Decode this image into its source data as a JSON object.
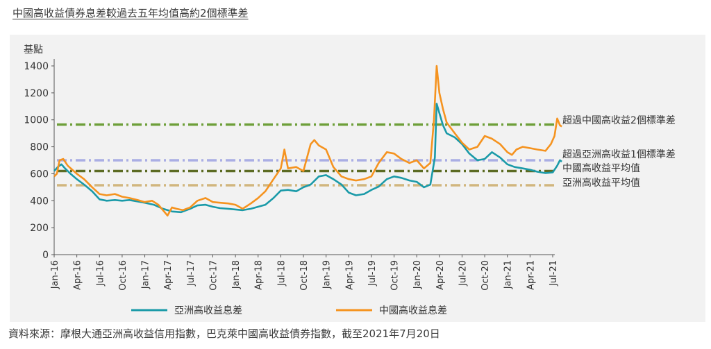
{
  "title": "中國高收益債券息差較過去五年均值高約2個標準差",
  "source": "資料來源：摩根大通亞洲高收益信用指數，巴克萊中國高收益債券指數，截至2021年7月20日",
  "chart_data": {
    "type": "line",
    "title": "中國高收益債券息差較過去五年均值高約2個標準差",
    "ylabel": "基點",
    "ylim": [
      0,
      1400
    ],
    "yticks": [
      "0",
      "200",
      "400",
      "600",
      "800",
      "1000",
      "1200",
      "1400"
    ],
    "x_start": "2016-01",
    "x_end": "2021-07",
    "x_ticks": [
      "Jan-16",
      "Apr-16",
      "Jul-16",
      "Oct-16",
      "Jan-17",
      "Apr-17",
      "Jul-17",
      "Oct-17",
      "Jan-18",
      "Apr-18",
      "Jul-18",
      "Oct-18",
      "Jan-19",
      "Apr-19",
      "Jul-19",
      "Oct-19",
      "Jan-20",
      "Apr-20",
      "Jul-20",
      "Oct-20",
      "Jan-21",
      "Apr-21",
      "Jul-21"
    ],
    "grid": false,
    "legend_position": "bottom",
    "series": [
      {
        "name": "亞洲高收益息差",
        "color": "#1a9aa8",
        "points": [
          [
            2016.0,
            620
          ],
          [
            2016.04,
            650
          ],
          [
            2016.08,
            670
          ],
          [
            2016.12,
            640
          ],
          [
            2016.18,
            600
          ],
          [
            2016.25,
            560
          ],
          [
            2016.33,
            520
          ],
          [
            2016.42,
            470
          ],
          [
            2016.5,
            410
          ],
          [
            2016.58,
            400
          ],
          [
            2016.67,
            405
          ],
          [
            2016.75,
            400
          ],
          [
            2016.83,
            405
          ],
          [
            2016.92,
            395
          ],
          [
            2017.0,
            385
          ],
          [
            2017.1,
            370
          ],
          [
            2017.2,
            340
          ],
          [
            2017.3,
            320
          ],
          [
            2017.4,
            315
          ],
          [
            2017.5,
            340
          ],
          [
            2017.58,
            365
          ],
          [
            2017.67,
            370
          ],
          [
            2017.75,
            355
          ],
          [
            2017.83,
            345
          ],
          [
            2017.92,
            340
          ],
          [
            2018.0,
            335
          ],
          [
            2018.08,
            330
          ],
          [
            2018.17,
            340
          ],
          [
            2018.25,
            355
          ],
          [
            2018.33,
            370
          ],
          [
            2018.42,
            420
          ],
          [
            2018.5,
            475
          ],
          [
            2018.58,
            480
          ],
          [
            2018.67,
            470
          ],
          [
            2018.75,
            500
          ],
          [
            2018.83,
            520
          ],
          [
            2018.92,
            580
          ],
          [
            2019.0,
            590
          ],
          [
            2019.08,
            560
          ],
          [
            2019.17,
            520
          ],
          [
            2019.25,
            460
          ],
          [
            2019.33,
            440
          ],
          [
            2019.42,
            450
          ],
          [
            2019.5,
            480
          ],
          [
            2019.58,
            505
          ],
          [
            2019.67,
            560
          ],
          [
            2019.75,
            580
          ],
          [
            2019.83,
            570
          ],
          [
            2019.92,
            550
          ],
          [
            2020.0,
            540
          ],
          [
            2020.08,
            500
          ],
          [
            2020.15,
            520
          ],
          [
            2020.2,
            720
          ],
          [
            2020.22,
            1120
          ],
          [
            2020.25,
            1050
          ],
          [
            2020.29,
            960
          ],
          [
            2020.33,
            900
          ],
          [
            2020.42,
            870
          ],
          [
            2020.5,
            820
          ],
          [
            2020.58,
            750
          ],
          [
            2020.67,
            700
          ],
          [
            2020.75,
            710
          ],
          [
            2020.83,
            760
          ],
          [
            2020.92,
            720
          ],
          [
            2021.0,
            670
          ],
          [
            2021.08,
            650
          ],
          [
            2021.17,
            640
          ],
          [
            2021.25,
            630
          ],
          [
            2021.33,
            615
          ],
          [
            2021.42,
            605
          ],
          [
            2021.5,
            610
          ],
          [
            2021.55,
            660
          ],
          [
            2021.58,
            700
          ],
          [
            2021.6,
            690
          ]
        ]
      },
      {
        "name": "中國高收益息差",
        "color": "#f5931f",
        "points": [
          [
            2016.0,
            580
          ],
          [
            2016.03,
            600
          ],
          [
            2016.06,
            700
          ],
          [
            2016.1,
            710
          ],
          [
            2016.15,
            660
          ],
          [
            2016.2,
            630
          ],
          [
            2016.25,
            600
          ],
          [
            2016.33,
            560
          ],
          [
            2016.42,
            500
          ],
          [
            2016.5,
            450
          ],
          [
            2016.58,
            440
          ],
          [
            2016.67,
            450
          ],
          [
            2016.75,
            430
          ],
          [
            2016.83,
            420
          ],
          [
            2016.92,
            405
          ],
          [
            2017.0,
            390
          ],
          [
            2017.08,
            400
          ],
          [
            2017.15,
            370
          ],
          [
            2017.2,
            330
          ],
          [
            2017.25,
            290
          ],
          [
            2017.3,
            350
          ],
          [
            2017.35,
            340
          ],
          [
            2017.42,
            330
          ],
          [
            2017.5,
            350
          ],
          [
            2017.58,
            400
          ],
          [
            2017.67,
            420
          ],
          [
            2017.75,
            390
          ],
          [
            2017.83,
            385
          ],
          [
            2017.92,
            380
          ],
          [
            2018.0,
            370
          ],
          [
            2018.08,
            340
          ],
          [
            2018.17,
            380
          ],
          [
            2018.25,
            420
          ],
          [
            2018.33,
            470
          ],
          [
            2018.42,
            560
          ],
          [
            2018.5,
            640
          ],
          [
            2018.54,
            780
          ],
          [
            2018.58,
            640
          ],
          [
            2018.67,
            650
          ],
          [
            2018.75,
            620
          ],
          [
            2018.83,
            820
          ],
          [
            2018.87,
            850
          ],
          [
            2018.92,
            810
          ],
          [
            2019.0,
            780
          ],
          [
            2019.08,
            650
          ],
          [
            2019.17,
            580
          ],
          [
            2019.25,
            560
          ],
          [
            2019.33,
            550
          ],
          [
            2019.42,
            560
          ],
          [
            2019.5,
            580
          ],
          [
            2019.58,
            680
          ],
          [
            2019.67,
            760
          ],
          [
            2019.75,
            750
          ],
          [
            2019.83,
            710
          ],
          [
            2019.92,
            680
          ],
          [
            2020.0,
            700
          ],
          [
            2020.08,
            640
          ],
          [
            2020.15,
            680
          ],
          [
            2020.19,
            1000
          ],
          [
            2020.22,
            1400
          ],
          [
            2020.25,
            1200
          ],
          [
            2020.29,
            1080
          ],
          [
            2020.33,
            980
          ],
          [
            2020.42,
            900
          ],
          [
            2020.5,
            830
          ],
          [
            2020.58,
            780
          ],
          [
            2020.67,
            800
          ],
          [
            2020.75,
            880
          ],
          [
            2020.83,
            860
          ],
          [
            2020.92,
            820
          ],
          [
            2021.0,
            760
          ],
          [
            2021.05,
            740
          ],
          [
            2021.1,
            780
          ],
          [
            2021.17,
            800
          ],
          [
            2021.25,
            790
          ],
          [
            2021.33,
            780
          ],
          [
            2021.42,
            770
          ],
          [
            2021.48,
            820
          ],
          [
            2021.52,
            880
          ],
          [
            2021.55,
            1010
          ],
          [
            2021.58,
            960
          ],
          [
            2021.6,
            950
          ]
        ]
      }
    ],
    "reference_lines": [
      {
        "label": "超過中國高收益2個標準差",
        "value": 965,
        "color": "#6e9f3a"
      },
      {
        "label": "超過亞洲高收益1個標準差",
        "value": 700,
        "color": "#aaaee4"
      },
      {
        "label": "中國高收益平均值",
        "value": 620,
        "color": "#5c6b23"
      },
      {
        "label": "亞洲高收益平均值",
        "value": 515,
        "color": "#d1b67e"
      }
    ]
  }
}
